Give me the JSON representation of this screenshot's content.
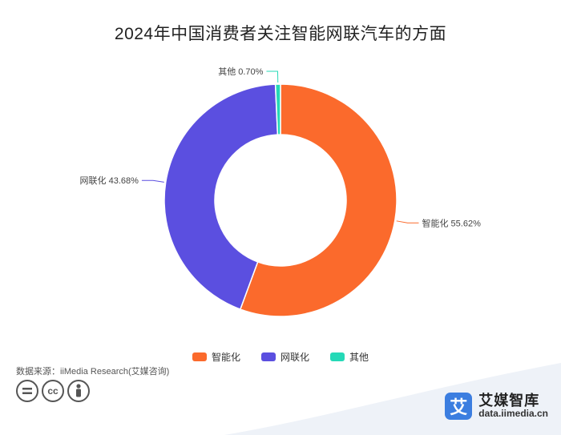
{
  "chart_data": {
    "type": "pie",
    "title": "2024年中国消费者关注智能网联汽车的方面",
    "categories": [
      "智能化",
      "网联化",
      "其他"
    ],
    "values": [
      55.62,
      43.68,
      0.7
    ],
    "value_labels": [
      "55.62%",
      "43.68%",
      "0.70%"
    ],
    "colors": [
      "#fb6a2c",
      "#5b4fe0",
      "#25d9b7"
    ],
    "donut": true,
    "legend_position": "bottom"
  },
  "source": "数据来源：iiMedia Research(艾媒咨询)",
  "license_icons": [
    "equals-icon",
    "cc-icon",
    "person-icon"
  ],
  "brand": {
    "logo_char": "艾",
    "name": "艾媒智库",
    "url": "data.iimedia.cn",
    "accent": "#3c7ee0"
  }
}
